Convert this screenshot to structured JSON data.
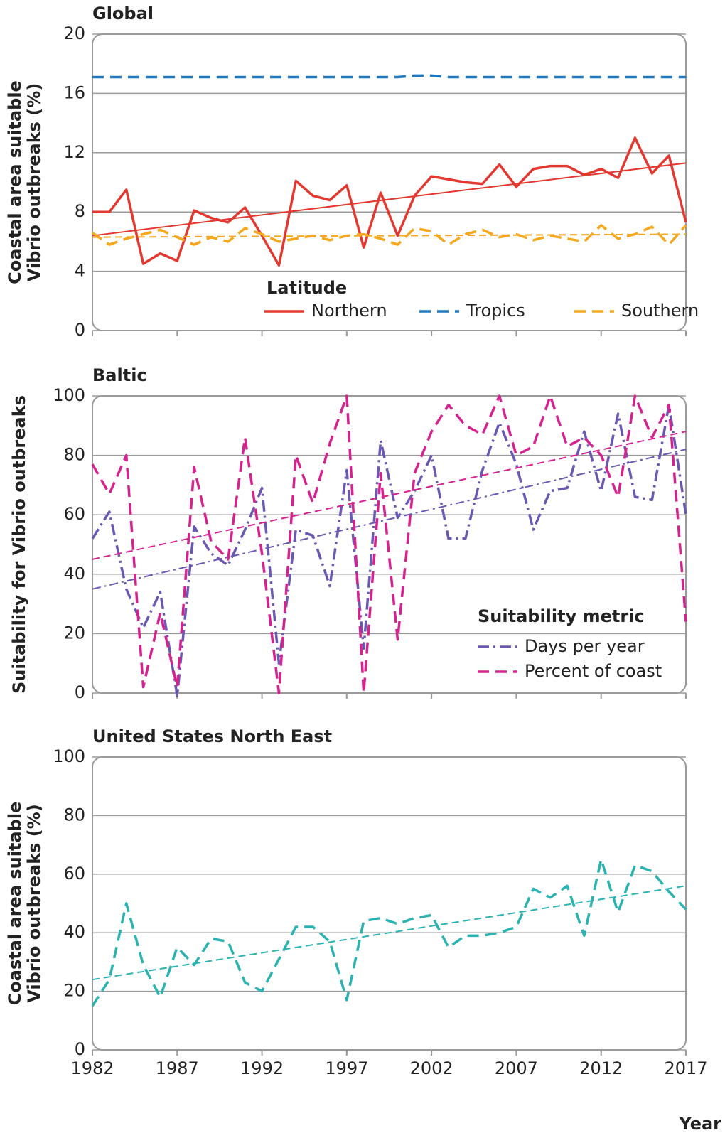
{
  "chart_data": [
    {
      "type": "line",
      "title": "Global",
      "y_label": [
        "Coastal area suitable",
        "Vibrio outbreaks (%)"
      ],
      "x": [
        1982,
        1983,
        1984,
        1985,
        1986,
        1987,
        1988,
        1989,
        1990,
        1991,
        1992,
        1993,
        1994,
        1995,
        1996,
        1997,
        1998,
        1999,
        2000,
        2001,
        2002,
        2003,
        2004,
        2005,
        2006,
        2007,
        2008,
        2009,
        2010,
        2011,
        2012,
        2013,
        2014,
        2015,
        2016,
        2017
      ],
      "xlim": [
        1982,
        2017
      ],
      "xticks": [
        1982,
        1987,
        1992,
        1997,
        2002,
        2007,
        2012,
        2017
      ],
      "xtick_labels": false,
      "ylim": [
        0,
        20
      ],
      "yticks": [
        0,
        4,
        8,
        12,
        16,
        20
      ],
      "grid": true,
      "legend_title": "Latitude",
      "legend": "bottom",
      "series": [
        {
          "name": "Northern",
          "color": "#e2382f",
          "style": "solid",
          "values": [
            8.0,
            8.0,
            9.5,
            4.5,
            5.2,
            4.7,
            8.1,
            7.6,
            7.3,
            8.3,
            6.4,
            4.4,
            10.1,
            9.1,
            8.8,
            9.8,
            5.6,
            9.3,
            6.4,
            9.1,
            10.4,
            10.2,
            10.0,
            9.9,
            11.2,
            9.7,
            10.9,
            11.1,
            11.1,
            10.5,
            10.9,
            10.3,
            13.0,
            10.6,
            11.8,
            7.3
          ],
          "trend": [
            6.4,
            11.3
          ]
        },
        {
          "name": "Tropics",
          "color": "#1f78bd",
          "style": "dashed",
          "values": [
            17.1,
            17.1,
            17.1,
            17.1,
            17.1,
            17.1,
            17.1,
            17.1,
            17.1,
            17.1,
            17.1,
            17.1,
            17.1,
            17.1,
            17.1,
            17.1,
            17.1,
            17.1,
            17.1,
            17.2,
            17.2,
            17.1,
            17.1,
            17.1,
            17.1,
            17.1,
            17.1,
            17.1,
            17.1,
            17.1,
            17.1,
            17.1,
            17.1,
            17.1,
            17.1,
            17.1
          ]
        },
        {
          "name": "Southern",
          "color": "#f5a81f",
          "style": "dashed",
          "values": [
            6.6,
            5.8,
            6.2,
            6.5,
            6.8,
            6.3,
            5.8,
            6.3,
            6.0,
            6.9,
            6.5,
            6.0,
            6.2,
            6.4,
            6.1,
            6.4,
            6.5,
            6.2,
            5.8,
            6.9,
            6.7,
            5.8,
            6.5,
            6.8,
            6.3,
            6.5,
            6.1,
            6.4,
            6.2,
            6.0,
            7.1,
            6.2,
            6.5,
            7.0,
            5.8,
            7.1
          ],
          "trend": [
            6.3,
            6.5
          ]
        }
      ]
    },
    {
      "type": "line",
      "title": "Baltic",
      "y_label": [
        "Suitability for Vibrio outbreaks"
      ],
      "x": [
        1982,
        1983,
        1984,
        1985,
        1986,
        1987,
        1988,
        1989,
        1990,
        1991,
        1992,
        1993,
        1994,
        1995,
        1996,
        1997,
        1998,
        1999,
        2000,
        2001,
        2002,
        2003,
        2004,
        2005,
        2006,
        2007,
        2008,
        2009,
        2010,
        2011,
        2012,
        2013,
        2014,
        2015,
        2016,
        2017
      ],
      "xlim": [
        1982,
        2017
      ],
      "xticks": [
        1982,
        1987,
        1992,
        1997,
        2002,
        2007,
        2012,
        2017
      ],
      "xtick_labels": false,
      "ylim": [
        0,
        100
      ],
      "yticks": [
        0,
        20,
        40,
        60,
        80,
        100
      ],
      "grid": true,
      "legend_title": "Suitability metric",
      "legend": "lower right",
      "series": [
        {
          "name": "Days per year",
          "color": "#6a58b3",
          "style": "dashdot",
          "values": [
            52,
            61,
            35,
            22,
            34,
            -1,
            56,
            47,
            43,
            55,
            69,
            10,
            55,
            53,
            36,
            75,
            15,
            85,
            59,
            68,
            80,
            52,
            52,
            75,
            91,
            77,
            55,
            68,
            69,
            88,
            68,
            94,
            66,
            65,
            97,
            60
          ],
          "trend": [
            35,
            82
          ]
        },
        {
          "name": "Percent of coast",
          "color": "#d6228e",
          "style": "dashed",
          "values": [
            77,
            67,
            80,
            2,
            27,
            2,
            76,
            51,
            45,
            86,
            47,
            0,
            80,
            64,
            84,
            100,
            0,
            74,
            18,
            74,
            88,
            97,
            90,
            87,
            100,
            80,
            83,
            100,
            83,
            86,
            80,
            66,
            100,
            86,
            97,
            24
          ],
          "trend": [
            45,
            88
          ]
        }
      ]
    },
    {
      "type": "line",
      "title": "United States North East",
      "y_label": [
        "Coastal area suitable",
        "Vibrio outbreaks (%)"
      ],
      "x_label": "Year",
      "x": [
        1982,
        1983,
        1984,
        1985,
        1986,
        1987,
        1988,
        1989,
        1990,
        1991,
        1992,
        1993,
        1994,
        1995,
        1996,
        1997,
        1998,
        1999,
        2000,
        2001,
        2002,
        2003,
        2004,
        2005,
        2006,
        2007,
        2008,
        2009,
        2010,
        2011,
        2012,
        2013,
        2014,
        2015,
        2016,
        2017
      ],
      "xlim": [
        1982,
        2017
      ],
      "xticks": [
        1982,
        1987,
        1992,
        1997,
        2002,
        2007,
        2012,
        2017
      ],
      "xtick_labels": true,
      "ylim": [
        0,
        100
      ],
      "yticks": [
        0,
        20,
        40,
        60,
        80,
        100
      ],
      "grid": true,
      "series": [
        {
          "color": "#2bb3b1",
          "style": "dashed",
          "values": [
            15,
            24,
            50,
            29,
            18,
            35,
            29,
            38,
            37,
            23,
            20,
            31,
            42,
            42,
            37,
            17,
            44,
            45,
            43,
            45,
            46,
            35,
            39,
            39,
            40,
            42,
            55,
            52,
            56,
            39,
            65,
            47,
            63,
            61,
            54,
            48
          ],
          "trend": [
            24,
            56
          ]
        }
      ]
    }
  ]
}
